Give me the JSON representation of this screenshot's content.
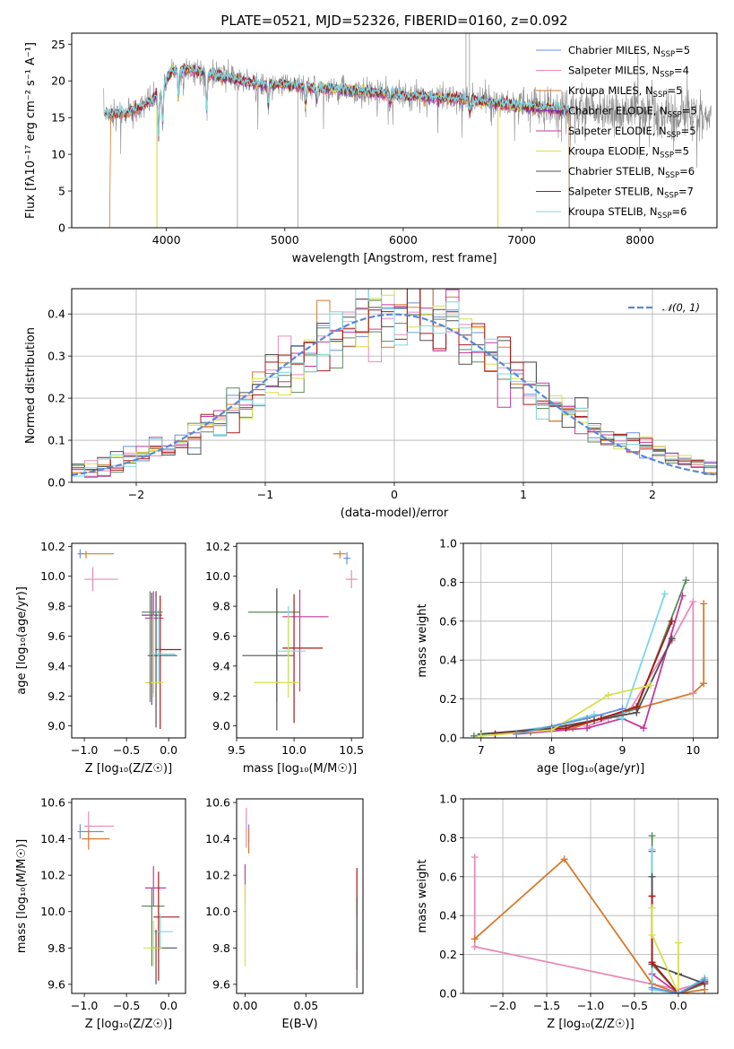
{
  "colors": {
    "Chabrier MILES": "#6a8fd8",
    "Salpeter MILES": "#e88ab8",
    "Kroupa MILES": "#d67a2e",
    "Chabrier ELODIE": "#8a35a8",
    "Salpeter ELODIE": "#c33a9e",
    "Kroupa ELODIE": "#d7e04a",
    "Chabrier STELIB": "#505050",
    "Salpeter STELIB": "#a81818",
    "Kroupa STELIB": "#7dd6e0",
    "normal": "#5b87d6",
    "elodie_green": "#5e8a5e"
  },
  "chart_data": [
    {
      "id": "spectrum",
      "type": "line",
      "title": "PLATE=0521, MJD=52326, FIBERID=0160, z=0.092",
      "xlabel": "wavelength [Angstrom, rest frame]",
      "ylabel": "Flux [fλ10⁻¹⁷ erg cm⁻² s⁻¹ A⁻¹]",
      "xlim": [
        3200,
        8650
      ],
      "ylim": [
        0,
        26.5
      ],
      "xticks": [
        4000,
        5000,
        6000,
        7000,
        8000
      ],
      "yticks": [
        0,
        5,
        10,
        15,
        20,
        25
      ],
      "grid": false,
      "legend": "top-right",
      "legend_entries": [
        {
          "name": "Chabrier MILES, N",
          "sub": "SSP",
          "n": "=5"
        },
        {
          "name": "Salpeter MILES, N",
          "sub": "SSP",
          "n": "=4"
        },
        {
          "name": "Kroupa MILES, N",
          "sub": "SSP",
          "n": "=5"
        },
        {
          "name": "Chabrier ELODIE, N",
          "sub": "SSP",
          "n": "=5"
        },
        {
          "name": "Salpeter ELODIE, N",
          "sub": "SSP",
          "n": "=5"
        },
        {
          "name": "Kroupa ELODIE, N",
          "sub": "SSP",
          "n": "=5"
        },
        {
          "name": "Chabrier STELIB, N",
          "sub": "SSP",
          "n": "=6"
        },
        {
          "name": "Salpeter STELIB, N",
          "sub": "SSP",
          "n": "=7"
        },
        {
          "name": "Kroupa STELIB, N",
          "sub": "SSP",
          "n": "=6"
        }
      ],
      "continuum": [
        [
          3470,
          15.5
        ],
        [
          3650,
          15.5
        ],
        [
          3800,
          16.5
        ],
        [
          3950,
          18.5
        ],
        [
          4050,
          21.5
        ],
        [
          4200,
          21.5
        ],
        [
          4500,
          20.5
        ],
        [
          4800,
          19.5
        ],
        [
          5000,
          19.5
        ],
        [
          5300,
          19.0
        ],
        [
          5700,
          18.5
        ],
        [
          6000,
          18.0
        ],
        [
          6500,
          17.5
        ],
        [
          7000,
          16.5
        ],
        [
          7400,
          16.0
        ],
        [
          7800,
          15.8
        ],
        [
          8300,
          15.5
        ],
        [
          8600,
          15.0
        ]
      ]
    },
    {
      "id": "residuals",
      "type": "histogram",
      "xlabel": "(data-model)/error",
      "ylabel": "Normed distribution",
      "xlim": [
        -2.5,
        2.5
      ],
      "ylim": [
        0,
        0.46
      ],
      "xticks": [
        -2,
        -1,
        0,
        1,
        2
      ],
      "yticks": [
        0.0,
        0.1,
        0.2,
        0.3,
        0.4
      ],
      "grid": true,
      "legend": "top-right",
      "normal_label": "𝒩(0, 1)",
      "bin_width": 0.1
    },
    {
      "id": "age_vs_Z",
      "type": "errorbar",
      "xlabel": "Z [log₁₀(Z/Z☉)]",
      "ylabel": "age  [log₁₀(age/yr)]",
      "xlim": [
        -1.15,
        0.2
      ],
      "ylim": [
        8.92,
        10.22
      ],
      "xticks": [
        -1.0,
        -0.5,
        0.0
      ],
      "yticks": [
        9.0,
        9.2,
        9.4,
        9.6,
        9.8,
        10.0,
        10.2
      ],
      "points": [
        {
          "model": "Chabrier MILES",
          "x": -1.05,
          "xerr": [
            0.03,
            0.05
          ],
          "y": 10.15,
          "yerr": [
            0.03,
            0.03
          ]
        },
        {
          "model": "Kroupa MILES",
          "x": -0.98,
          "xerr": [
            0.05,
            0.33
          ],
          "y": 10.15,
          "yerr": [
            0.03,
            0.02
          ]
        },
        {
          "model": "Salpeter MILES",
          "x": -0.9,
          "xerr": [
            0.1,
            0.3
          ],
          "y": 9.98,
          "yerr": [
            0.08,
            0.08
          ]
        },
        {
          "model": "Chabrier ELODIE",
          "x": -0.2,
          "xerr": [
            0.12,
            0.12
          ],
          "y": 9.74,
          "yerr": [
            0.6,
            0.15
          ]
        },
        {
          "model": "Salpeter ELODIE",
          "x": -0.18,
          "xerr": [
            0.1,
            0.12
          ],
          "y": 9.72,
          "yerr": [
            0.5,
            0.18
          ]
        },
        {
          "model": "Chabrier STELIB",
          "x": -0.15,
          "xerr": [
            0.1,
            0.25
          ],
          "y": 9.47,
          "yerr": [
            0.48,
            0.43
          ]
        },
        {
          "model": "Salpeter STELIB",
          "x": -0.1,
          "xerr": [
            0.05,
            0.25
          ],
          "y": 9.51,
          "yerr": [
            0.53,
            0.36
          ]
        },
        {
          "model": "Kroupa STELIB",
          "x": -0.12,
          "xerr": [
            0.08,
            0.2
          ],
          "y": 9.48,
          "yerr": [
            0.2,
            0.3
          ]
        },
        {
          "model": "Kroupa ELODIE",
          "x": -0.18,
          "xerr": [
            0.1,
            0.12
          ],
          "y": 9.29,
          "yerr": [
            0.1,
            0.45
          ]
        },
        {
          "model": "Chabrier ELODIE",
          "color": "elodie_green",
          "x": -0.22,
          "xerr": [
            0.1,
            0.15
          ],
          "y": 9.76,
          "yerr": [
            0.6,
            0.14
          ]
        }
      ]
    },
    {
      "id": "age_vs_mass",
      "type": "errorbar",
      "xlabel": "mass [log₁₀(M/M☉)]",
      "ylabel": "",
      "xlim": [
        9.5,
        10.6
      ],
      "ylim": [
        8.92,
        10.22
      ],
      "xticks": [
        9.0,
        9.5,
        10.0,
        10.5
      ],
      "yticks": [
        9.0,
        9.2,
        9.4,
        9.6,
        9.8,
        10.0,
        10.2
      ],
      "points": [
        {
          "model": "Kroupa MILES",
          "x": 10.4,
          "xerr": [
            0.06,
            0.05
          ],
          "y": 10.15,
          "yerr": [
            0.03,
            0.02
          ]
        },
        {
          "model": "Chabrier MILES",
          "x": 10.46,
          "xerr": [
            0.03,
            0.03
          ],
          "y": 10.12,
          "yerr": [
            0.04,
            0.04
          ]
        },
        {
          "model": "Salpeter MILES",
          "x": 10.5,
          "xerr": [
            0.05,
            0.05
          ],
          "y": 9.98,
          "yerr": [
            0.06,
            0.06
          ]
        },
        {
          "model": "Chabrier ELODIE",
          "color": "elodie_green",
          "x": 9.85,
          "xerr": [
            0.25,
            0.2
          ],
          "y": 9.76,
          "yerr": [
            0.6,
            0.15
          ]
        },
        {
          "model": "Salpeter ELODIE",
          "x": 10.05,
          "xerr": [
            0.15,
            0.25
          ],
          "y": 9.73,
          "yerr": [
            0.5,
            0.18
          ]
        },
        {
          "model": "Chabrier STELIB",
          "x": 9.85,
          "xerr": [
            0.3,
            0.15
          ],
          "y": 9.47,
          "yerr": [
            0.5,
            0.45
          ]
        },
        {
          "model": "Salpeter STELIB",
          "x": 10.0,
          "xerr": [
            0.1,
            0.25
          ],
          "y": 9.52,
          "yerr": [
            0.5,
            0.36
          ]
        },
        {
          "model": "Kroupa STELIB",
          "x": 9.95,
          "xerr": [
            0.1,
            0.15
          ],
          "y": 9.5,
          "yerr": [
            0.2,
            0.3
          ]
        },
        {
          "model": "Kroupa ELODIE",
          "x": 9.95,
          "xerr": [
            0.3,
            0.1
          ],
          "y": 9.29,
          "yerr": [
            0.1,
            0.45
          ]
        }
      ]
    },
    {
      "id": "weight_vs_age",
      "type": "line",
      "xlabel": "age  [log₁₀(age/yr)]",
      "ylabel": "mass weight",
      "xlim": [
        6.75,
        10.35
      ],
      "ylim": [
        0,
        1.0
      ],
      "xticks": [
        7,
        8,
        9,
        10
      ],
      "yticks": [
        0.0,
        0.2,
        0.4,
        0.6,
        0.8,
        1.0
      ],
      "grid": true,
      "series": [
        {
          "model": "Kroupa MILES",
          "x": [
            8.3,
            8.7,
            9.0,
            10.0,
            10.15,
            10.15
          ],
          "y": [
            0.05,
            0.1,
            0.13,
            0.23,
            0.28,
            0.69
          ]
        },
        {
          "model": "Salpeter MILES",
          "x": [
            8.5,
            8.8,
            9.1,
            9.7,
            10.0,
            10.0
          ],
          "y": [
            0.06,
            0.1,
            0.14,
            0.5,
            0.7,
            0.23
          ]
        },
        {
          "model": "Chabrier ELODIE",
          "color": "elodie_green",
          "x": [
            6.9,
            7.7,
            8.5,
            9.2,
            9.9
          ],
          "y": [
            0.01,
            0.03,
            0.08,
            0.15,
            0.81
          ]
        },
        {
          "model": "Salpeter ELODIE",
          "x": [
            7.5,
            8.5,
            9.0,
            9.3,
            9.85
          ],
          "y": [
            0.02,
            0.05,
            0.1,
            0.05,
            0.73
          ]
        },
        {
          "model": "Kroupa STELIB",
          "x": [
            7.0,
            8.0,
            8.6,
            9.0,
            9.6
          ],
          "y": [
            0.01,
            0.06,
            0.12,
            0.1,
            0.74
          ]
        },
        {
          "model": "Chabrier STELIB",
          "x": [
            7.0,
            8.0,
            8.6,
            9.2,
            9.7
          ],
          "y": [
            0.02,
            0.05,
            0.09,
            0.13,
            0.51
          ]
        },
        {
          "model": "Salpeter STELIB",
          "x": [
            7.2,
            8.2,
            8.7,
            9.2,
            9.7
          ],
          "y": [
            0.02,
            0.05,
            0.1,
            0.16,
            0.6
          ]
        },
        {
          "model": "Kroupa ELODIE",
          "x": [
            7.0,
            8.0,
            8.8,
            9.4
          ],
          "y": [
            0.01,
            0.04,
            0.22,
            0.27
          ]
        },
        {
          "model": "Chabrier MILES",
          "x": [
            7.5,
            8.5,
            9.0
          ],
          "y": [
            0.02,
            0.1,
            0.15
          ]
        }
      ]
    },
    {
      "id": "mass_vs_Z",
      "type": "errorbar",
      "xlabel": "Z [log₁₀(Z/Z☉)]",
      "ylabel": "mass [log₁₀(M/M☉)]",
      "xlim": [
        -1.15,
        0.2
      ],
      "ylim": [
        9.55,
        10.62
      ],
      "xticks": [
        -1.0,
        -0.5,
        0.0
      ],
      "yticks": [
        9.6,
        9.8,
        10.0,
        10.2,
        10.4,
        10.6
      ],
      "points": [
        {
          "model": "Chabrier MILES",
          "x": -1.05,
          "xerr": [
            0.03,
            0.28
          ],
          "y": 10.44,
          "yerr": [
            0.04,
            0.04
          ]
        },
        {
          "model": "Salpeter MILES",
          "x": -0.95,
          "xerr": [
            0.05,
            0.3
          ],
          "y": 10.47,
          "yerr": [
            0.06,
            0.08
          ]
        },
        {
          "model": "Kroupa MILES",
          "x": -0.95,
          "xerr": [
            0.08,
            0.25
          ],
          "y": 10.4,
          "yerr": [
            0.06,
            0.05
          ]
        },
        {
          "model": "Salpeter ELODIE",
          "x": -0.18,
          "xerr": [
            0.1,
            0.15
          ],
          "y": 10.13,
          "yerr": [
            0.1,
            0.12
          ]
        },
        {
          "model": "Chabrier ELODIE",
          "color": "elodie_green",
          "x": -0.2,
          "xerr": [
            0.12,
            0.15
          ],
          "y": 10.03,
          "yerr": [
            0.33,
            0.1
          ]
        },
        {
          "model": "Salpeter STELIB",
          "x": -0.12,
          "xerr": [
            0.06,
            0.25
          ],
          "y": 9.97,
          "yerr": [
            0.35,
            0.25
          ]
        },
        {
          "model": "Kroupa STELIB",
          "x": -0.1,
          "xerr": [
            0.08,
            0.15
          ],
          "y": 9.89,
          "yerr": [
            0.1,
            0.1
          ]
        },
        {
          "model": "Chabrier STELIB",
          "x": -0.15,
          "xerr": [
            0.05,
            0.25
          ],
          "y": 9.8,
          "yerr": [
            0.2,
            0.1
          ]
        },
        {
          "model": "Kroupa ELODIE",
          "x": -0.18,
          "xerr": [
            0.12,
            0.1
          ],
          "y": 9.8,
          "yerr": [
            0.1,
            0.15
          ]
        }
      ]
    },
    {
      "id": "mass_vs_ebv",
      "type": "errorbar",
      "xlabel": "E(B-V)",
      "ylabel": "",
      "xlim": [
        -0.007,
        0.097
      ],
      "ylim": [
        9.55,
        10.62
      ],
      "xticks": [
        0.0,
        0.05
      ],
      "yticks": [
        9.6,
        9.8,
        10.0,
        10.2,
        10.4,
        10.6
      ],
      "points": [
        {
          "model": "Salpeter MILES",
          "x": 0.001,
          "xerr": [
            0.0,
            0.0
          ],
          "y": 10.45,
          "yerr": [
            0.1,
            0.12
          ]
        },
        {
          "model": "Chabrier MILES",
          "x": 0.003,
          "xerr": [
            0.0,
            0.0
          ],
          "y": 10.43,
          "yerr": [
            0.05,
            0.05
          ]
        },
        {
          "model": "Kroupa MILES",
          "x": 0.003,
          "xerr": [
            0.0,
            0.0
          ],
          "y": 10.4,
          "yerr": [
            0.08,
            0.06
          ]
        },
        {
          "model": "Salpeter ELODIE",
          "x": 0.0,
          "xerr": [
            0.0,
            0.0
          ],
          "y": 10.14,
          "yerr": [
            0.1,
            0.12
          ]
        },
        {
          "model": "Kroupa ELODIE",
          "x": 0.0,
          "xerr": [
            0.0,
            0.0
          ],
          "y": 9.85,
          "yerr": [
            0.15,
            0.3
          ]
        },
        {
          "model": "Salpeter STELIB",
          "x": 0.092,
          "xerr": [
            0.0,
            0.0
          ],
          "y": 9.98,
          "yerr": [
            0.3,
            0.26
          ]
        },
        {
          "model": "Kroupa STELIB",
          "x": 0.092,
          "xerr": [
            0.0,
            0.0
          ],
          "y": 9.88,
          "yerr": [
            0.1,
            0.1
          ]
        },
        {
          "model": "Chabrier STELIB",
          "x": 0.092,
          "xerr": [
            0.0,
            0.0
          ],
          "y": 9.8,
          "yerr": [
            0.22,
            0.28
          ]
        }
      ]
    },
    {
      "id": "weight_vs_Z",
      "type": "line",
      "xlabel": "Z [log₁₀(Z/Z☉)]",
      "ylabel": "mass weight",
      "xlim": [
        -2.45,
        0.45
      ],
      "ylim": [
        0,
        1.0
      ],
      "xticks": [
        -2.0,
        -1.5,
        -1.0,
        -0.5,
        0.0
      ],
      "yticks": [
        0.0,
        0.2,
        0.4,
        0.6,
        0.8,
        1.0
      ],
      "grid": true,
      "series": [
        {
          "model": "Salpeter MILES",
          "x": [
            -2.32,
            -2.32,
            -2.32,
            0.0,
            0.3
          ],
          "y": [
            0.7,
            0.28,
            0.24,
            0.02,
            0.06
          ]
        },
        {
          "model": "Kroupa MILES",
          "x": [
            -2.32,
            -1.3,
            -0.3,
            0.0,
            0.3
          ],
          "y": [
            0.28,
            0.69,
            0.05,
            0.0,
            0.02
          ]
        },
        {
          "model": "Chabrier ELODIE",
          "color": "elodie_green",
          "x": [
            -0.3,
            -0.3,
            0.0,
            0.3
          ],
          "y": [
            0.81,
            0.15,
            0.0,
            0.05
          ]
        },
        {
          "model": "Salpeter ELODIE",
          "x": [
            -0.3,
            -0.3,
            0.0
          ],
          "y": [
            0.73,
            0.1,
            0.0
          ]
        },
        {
          "model": "Kroupa STELIB",
          "x": [
            -0.3,
            -0.3,
            0.0,
            0.3
          ],
          "y": [
            0.74,
            0.02,
            0.0,
            0.08
          ]
        },
        {
          "model": "Chabrier STELIB",
          "x": [
            -0.3,
            -0.3,
            0.0,
            0.3
          ],
          "y": [
            0.6,
            0.15,
            0.1,
            0.05
          ]
        },
        {
          "model": "Salpeter STELIB",
          "x": [
            -0.3,
            -0.3,
            0.0,
            0.3
          ],
          "y": [
            0.5,
            0.16,
            0.0,
            0.06
          ]
        },
        {
          "model": "Kroupa ELODIE",
          "x": [
            -0.3,
            -0.3,
            0.0,
            0.0
          ],
          "y": [
            0.44,
            0.3,
            0.0,
            0.26
          ]
        },
        {
          "model": "Chabrier MILES",
          "x": [
            -0.3,
            0.0,
            0.3
          ],
          "y": [
            0.03,
            0.0,
            0.07
          ]
        }
      ]
    }
  ]
}
